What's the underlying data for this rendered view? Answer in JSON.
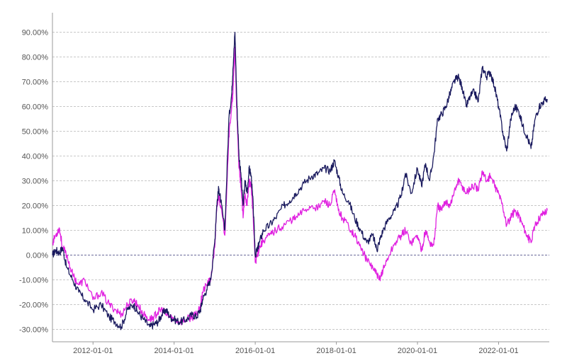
{
  "chart_data": {
    "type": "line",
    "title": "",
    "xlabel": "",
    "ylabel": "",
    "grid": true,
    "y_ticks": [
      "-30.00%",
      "-20.00%",
      "-10.00%",
      "0.00%",
      "10.00%",
      "20.00%",
      "30.00%",
      "40.00%",
      "50.00%",
      "60.00%",
      "70.00%",
      "80.00%",
      "90.00%"
    ],
    "y_tick_values": [
      -30,
      -20,
      -10,
      0,
      10,
      20,
      30,
      40,
      50,
      60,
      70,
      80,
      90
    ],
    "ylim": [
      -35,
      95
    ],
    "x_ticks": [
      "2012-01-01",
      "2014-01-01",
      "2016-01-01",
      "2018-01-01",
      "2020-01-01",
      "2022-01-01"
    ],
    "x_tick_values": [
      2012.0,
      2014.0,
      2016.0,
      2018.0,
      2020.0,
      2022.0
    ],
    "xlim": [
      2011.0,
      2023.25
    ],
    "series": [
      {
        "color": "#1a1a5e",
        "x": [
          2011.0,
          2011.08,
          2011.17,
          2011.25,
          2011.35,
          2011.5,
          2011.65,
          2011.8,
          2012.0,
          2012.2,
          2012.4,
          2012.55,
          2012.7,
          2012.85,
          2013.0,
          2013.1,
          2013.25,
          2013.4,
          2013.5,
          2013.6,
          2013.7,
          2013.8,
          2013.9,
          2014.0,
          2014.15,
          2014.3,
          2014.45,
          2014.55,
          2014.65,
          2014.7,
          2014.8,
          2014.9,
          2015.0,
          2015.05,
          2015.1,
          2015.15,
          2015.25,
          2015.35,
          2015.42,
          2015.45,
          2015.5,
          2015.55,
          2015.6,
          2015.65,
          2015.7,
          2015.75,
          2015.8,
          2015.85,
          2015.9,
          2015.95,
          2016.0,
          2016.05,
          2016.1,
          2016.2,
          2016.35,
          2016.5,
          2016.7,
          2016.85,
          2017.0,
          2017.2,
          2017.4,
          2017.55,
          2017.7,
          2017.85,
          2017.95,
          2018.05,
          2018.15,
          2018.3,
          2018.45,
          2018.6,
          2018.75,
          2018.9,
          2019.0,
          2019.05,
          2019.15,
          2019.3,
          2019.45,
          2019.6,
          2019.7,
          2019.85,
          2020.0,
          2020.1,
          2020.2,
          2020.3,
          2020.4,
          2020.5,
          2020.6,
          2020.7,
          2020.8,
          2020.9,
          2021.0,
          2021.1,
          2021.2,
          2021.3,
          2021.4,
          2021.5,
          2021.6,
          2021.7,
          2021.8,
          2021.9,
          2022.0,
          2022.1,
          2022.2,
          2022.3,
          2022.4,
          2022.5,
          2022.6,
          2022.7,
          2022.8,
          2022.9,
          2023.0,
          2023.1,
          2023.2
        ],
        "y": [
          0,
          2,
          1,
          3,
          -5,
          -10,
          -15,
          -18,
          -22,
          -20,
          -25,
          -27,
          -29,
          -22,
          -20,
          -23,
          -26,
          -29,
          -28,
          -27,
          -24,
          -22,
          -25,
          -26,
          -27,
          -26,
          -24,
          -25,
          -22,
          -18,
          -14,
          -10,
          5,
          20,
          27,
          22,
          10,
          55,
          65,
          75,
          90,
          60,
          40,
          32,
          20,
          30,
          25,
          35,
          32,
          20,
          0,
          2,
          5,
          10,
          12,
          15,
          20,
          22,
          25,
          29,
          32,
          33,
          35,
          34,
          38,
          32,
          25,
          22,
          15,
          10,
          5,
          8,
          2,
          5,
          10,
          15,
          18,
          24,
          33,
          25,
          35,
          28,
          37,
          30,
          40,
          55,
          57,
          60,
          65,
          70,
          72,
          68,
          60,
          64,
          66,
          62,
          76,
          72,
          74,
          68,
          60,
          50,
          42,
          55,
          60,
          58,
          52,
          48,
          43,
          55,
          60,
          62,
          63
        ]
      },
      {
        "color": "#e020e0",
        "x": [
          2011.0,
          2011.08,
          2011.17,
          2011.25,
          2011.35,
          2011.5,
          2011.65,
          2011.8,
          2012.0,
          2012.2,
          2012.4,
          2012.55,
          2012.7,
          2012.85,
          2013.0,
          2013.1,
          2013.25,
          2013.4,
          2013.5,
          2013.6,
          2013.7,
          2013.8,
          2013.9,
          2014.0,
          2014.15,
          2014.3,
          2014.45,
          2014.55,
          2014.65,
          2014.7,
          2014.8,
          2014.9,
          2015.0,
          2015.05,
          2015.1,
          2015.15,
          2015.25,
          2015.35,
          2015.42,
          2015.45,
          2015.5,
          2015.55,
          2015.6,
          2015.65,
          2015.7,
          2015.75,
          2015.8,
          2015.85,
          2015.9,
          2015.95,
          2016.0,
          2016.05,
          2016.1,
          2016.2,
          2016.35,
          2016.5,
          2016.7,
          2016.85,
          2017.0,
          2017.2,
          2017.4,
          2017.55,
          2017.7,
          2017.85,
          2017.95,
          2018.05,
          2018.15,
          2018.3,
          2018.45,
          2018.6,
          2018.75,
          2018.9,
          2019.0,
          2019.05,
          2019.15,
          2019.3,
          2019.45,
          2019.6,
          2019.7,
          2019.85,
          2020.0,
          2020.1,
          2020.2,
          2020.3,
          2020.4,
          2020.5,
          2020.6,
          2020.7,
          2020.8,
          2020.9,
          2021.0,
          2021.1,
          2021.2,
          2021.3,
          2021.4,
          2021.5,
          2021.6,
          2021.7,
          2021.8,
          2021.9,
          2022.0,
          2022.1,
          2022.2,
          2022.3,
          2022.4,
          2022.5,
          2022.6,
          2022.7,
          2022.8,
          2022.9,
          2023.0,
          2023.1,
          2023.2
        ],
        "y": [
          5,
          8,
          11,
          3,
          0,
          -8,
          -12,
          -10,
          -18,
          -15,
          -20,
          -22,
          -24,
          -20,
          -18,
          -20,
          -24,
          -26,
          -25,
          -23,
          -22,
          -24,
          -25,
          -26,
          -27,
          -26,
          -25,
          -24,
          -20,
          -15,
          -12,
          -10,
          3,
          18,
          24,
          20,
          8,
          48,
          60,
          65,
          84,
          55,
          35,
          28,
          15,
          25,
          20,
          30,
          28,
          15,
          -3,
          0,
          3,
          6,
          8,
          10,
          12,
          14,
          15,
          18,
          20,
          19,
          22,
          20,
          26,
          18,
          15,
          12,
          8,
          3,
          -2,
          -5,
          -8,
          -10,
          -6,
          0,
          5,
          8,
          10,
          5,
          8,
          2,
          10,
          5,
          4,
          20,
          18,
          22,
          20,
          25,
          30,
          28,
          25,
          27,
          28,
          26,
          34,
          30,
          32,
          28,
          25,
          20,
          12,
          15,
          18,
          16,
          12,
          8,
          5,
          12,
          15,
          17,
          18
        ]
      }
    ]
  }
}
